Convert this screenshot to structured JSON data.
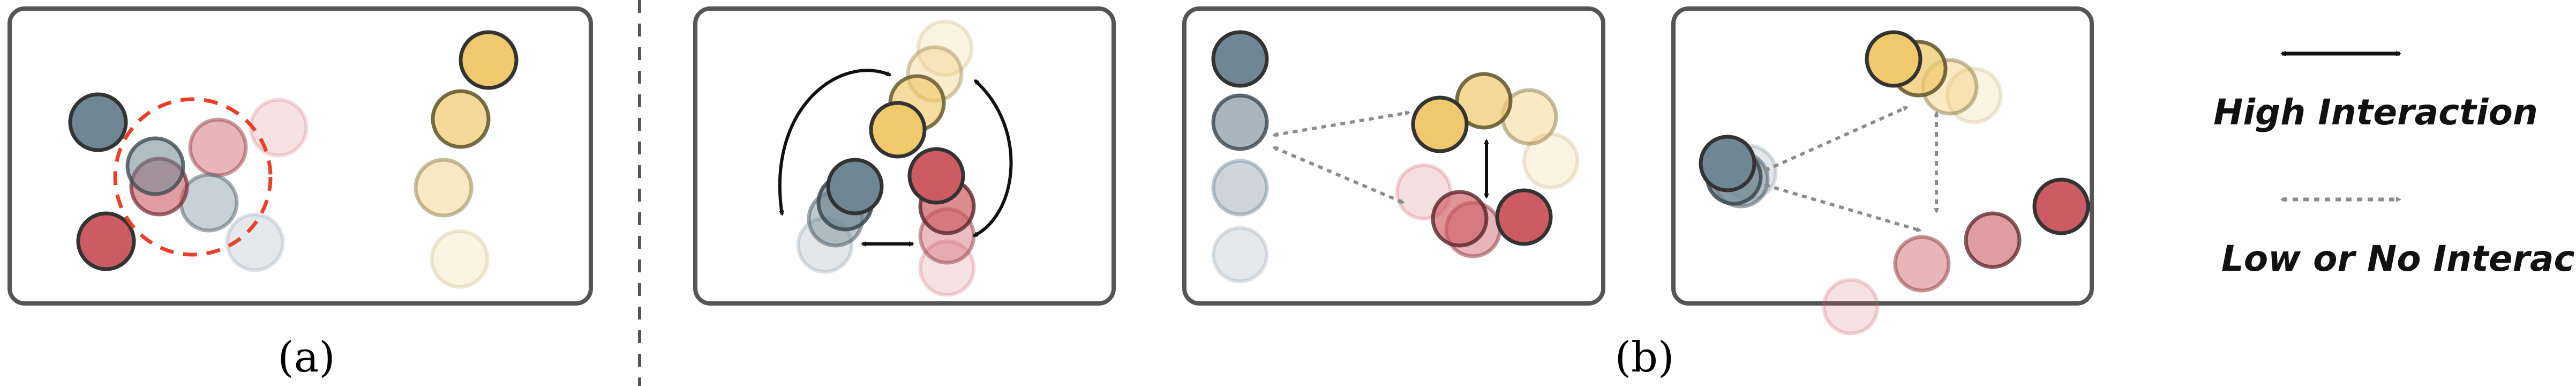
{
  "figure": {
    "panel_a_label": "(a)",
    "panel_b_label": "(b)"
  },
  "legend": {
    "high": "High Interaction",
    "low": "Low or No Interaction"
  },
  "colors": {
    "blue": "#6f8694",
    "red": "#cc5b63",
    "yellow": "#efc96c",
    "frame": "#555555",
    "dashed_circle": "#e8412a",
    "arrow_solid": "#111111",
    "arrow_dotted": "#8c8c8c"
  }
}
